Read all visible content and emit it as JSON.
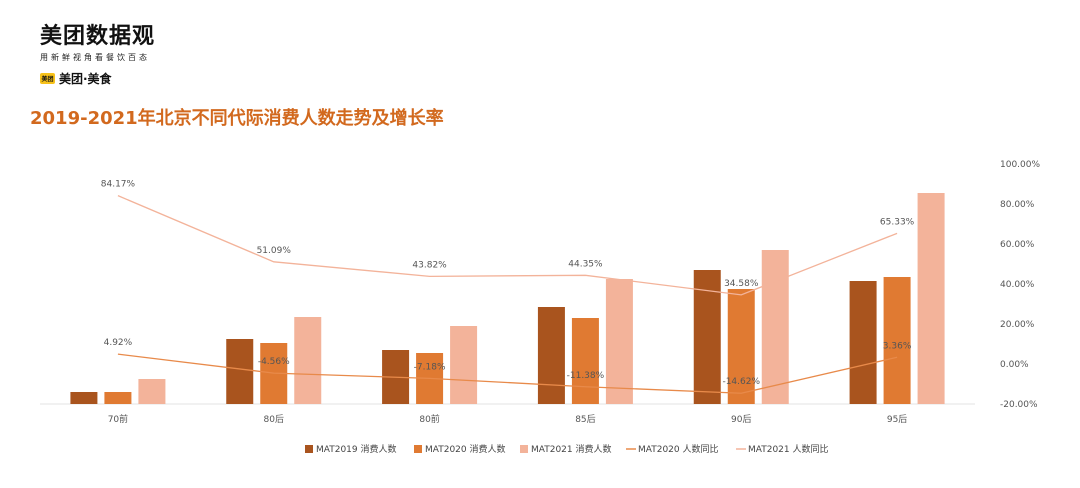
{
  "header": {
    "logo_title": "美团数据观",
    "logo_subtitle": "用新鲜视角看餐饮百态",
    "brand_badge": "美团",
    "brand_name": "美团·美食",
    "page_title": "2019-2021年北京不同代际消费人数走势及增长率"
  },
  "colors": {
    "mat2019": "#a9541e",
    "mat2020": "#e07a32",
    "mat2021": "#f3b39a",
    "line2020": "#e88a4a",
    "line2021": "#f3b39a",
    "title": "#d2691e"
  },
  "chart_data": {
    "type": "bar",
    "categories": [
      "70前",
      "80后",
      "80前",
      "85后",
      "90后",
      "95后"
    ],
    "series": [
      {
        "name": "MAT2019 消费人数",
        "kind": "bar",
        "values": [
          -14,
          12.5,
          7,
          28.5,
          47,
          41.5
        ]
      },
      {
        "name": "MAT2020 消费人数",
        "kind": "bar",
        "values": [
          -14,
          10.5,
          5.5,
          23,
          37.5,
          43.5
        ]
      },
      {
        "name": "MAT2021 消费人数",
        "kind": "bar",
        "values": [
          -7.5,
          23.5,
          19,
          42.5,
          57,
          85.5
        ]
      },
      {
        "name": "MAT2020 人数同比",
        "kind": "line",
        "axis": "right",
        "values": [
          4.92,
          -4.56,
          -7.18,
          -11.38,
          -14.62,
          3.36
        ],
        "labels": [
          "4.92%",
          "-4.56%",
          "-7.18%",
          "-11.38%",
          "-14.62%",
          "3.36%"
        ]
      },
      {
        "name": "MAT2021 人数同比",
        "kind": "line",
        "axis": "right",
        "values": [
          84.17,
          51.09,
          43.82,
          44.35,
          34.58,
          65.33
        ],
        "labels": [
          "84.17%",
          "51.09%",
          "43.82%",
          "44.35%",
          "34.58%",
          "65.33%"
        ]
      }
    ],
    "y_right_ticks": [
      "100.00%",
      "80.00%",
      "60.00%",
      "40.00%",
      "20.00%",
      "0.00%",
      "-20.00%"
    ],
    "ylim": [
      -20,
      100
    ],
    "legend_position": "bottom",
    "grid": false
  }
}
